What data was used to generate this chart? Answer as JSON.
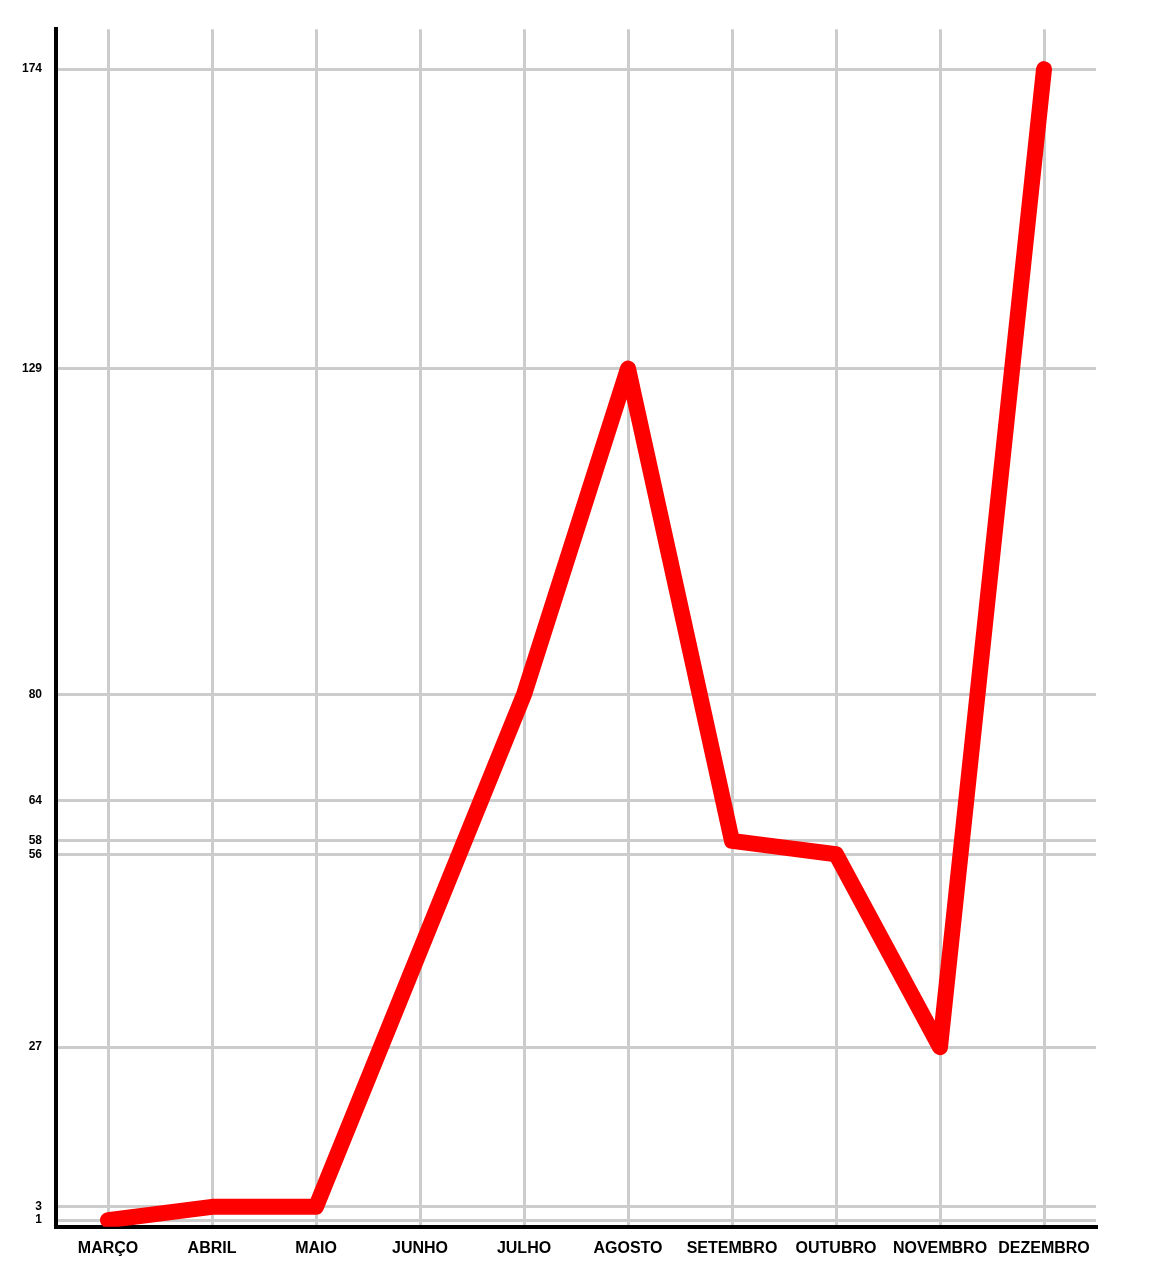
{
  "chart_data": {
    "type": "line",
    "categories": [
      "MARÇO",
      "ABRIL",
      "MAIO",
      "JUNHO",
      "JULHO",
      "AGOSTO",
      "SETEMBRO",
      "OUTUBRO",
      "NOVEMBRO",
      "DEZEMBRO"
    ],
    "series": [
      {
        "color": "#ff0000",
        "values": [
          1,
          3,
          3,
          null,
          80,
          129,
          58,
          56,
          27,
          174
        ]
      }
    ],
    "ylim": [
      0,
      180
    ],
    "yticks": [
      1,
      3,
      27,
      56,
      58,
      64,
      80,
      129,
      174
    ],
    "grid": true,
    "legend": false,
    "marker": "none",
    "line_style": "solid"
  }
}
